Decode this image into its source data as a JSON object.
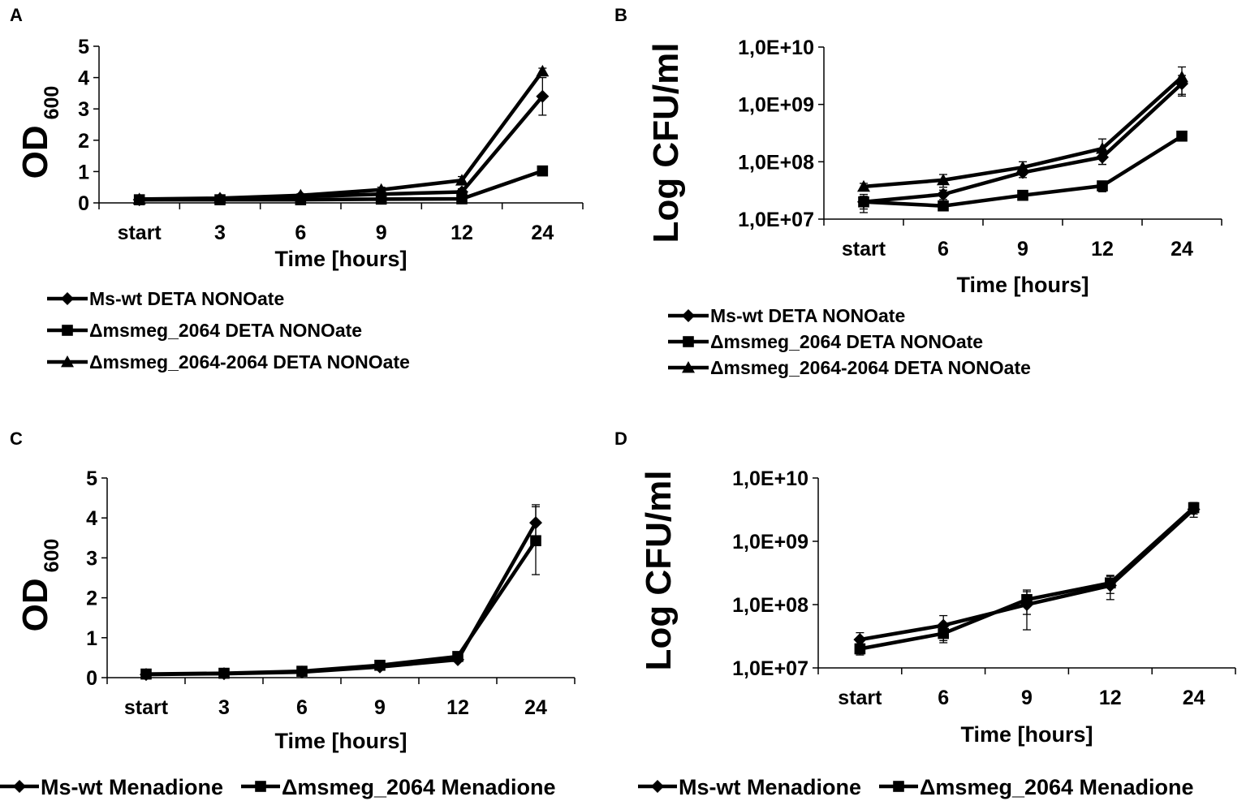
{
  "chart_data": [
    {
      "panel": "A",
      "type": "line",
      "categories": [
        "start",
        "3",
        "6",
        "9",
        "12",
        "24"
      ],
      "ylabel_main": "OD",
      "ylabel_sub": "600",
      "xlabel": "Time [hours]",
      "ylim": [
        0,
        5
      ],
      "yticks": [
        "0",
        "1",
        "2",
        "3",
        "4",
        "5"
      ],
      "scale": "linear",
      "series": [
        {
          "name": "Ms-wt DETA NONOate",
          "marker": "diamond",
          "values": [
            0.1,
            0.13,
            0.2,
            0.28,
            0.35,
            3.4
          ],
          "errors": [
            0.03,
            0.03,
            0.03,
            0.05,
            0.1,
            0.6
          ]
        },
        {
          "name": "Δmsmeg_2064 DETA NONOate",
          "marker": "square",
          "values": [
            0.1,
            0.1,
            0.1,
            0.12,
            0.13,
            1.02
          ],
          "errors": [
            0.02,
            0.02,
            0.02,
            0.02,
            0.03,
            0.05
          ]
        },
        {
          "name": "Δmsmeg_2064-2064 DETA NONOate",
          "marker": "triangle",
          "values": [
            0.12,
            0.15,
            0.24,
            0.42,
            0.72,
            4.2
          ],
          "errors": [
            0.03,
            0.03,
            0.05,
            0.08,
            0.12,
            0.1
          ]
        }
      ]
    },
    {
      "panel": "B",
      "type": "line",
      "categories": [
        "start",
        "6",
        "9",
        "12",
        "24"
      ],
      "ylabel_main": "Log CFU/ml",
      "xlabel": "Time [hours]",
      "ylim": [
        10000000,
        10000000000
      ],
      "yticks": [
        "1,0E+07",
        "1,0E+08",
        "1,0E+09",
        "1,0E+10"
      ],
      "scale": "log",
      "series": [
        {
          "name": "Ms-wt DETA NONOate",
          "marker": "diamond",
          "values": [
            20000000,
            27000000,
            65000000,
            120000000,
            2300000000
          ],
          "errors": [
            5000000,
            5000000,
            12000000,
            30000000,
            900000000
          ]
        },
        {
          "name": "Δmsmeg_2064 DETA NONOate",
          "marker": "square",
          "values": [
            20000000,
            17000000,
            26000000,
            38000000,
            280000000
          ],
          "errors": [
            7000000,
            3000000,
            4000000,
            8000000,
            30000000
          ]
        },
        {
          "name": "Δmsmeg_2064-2064 DETA NONOate",
          "marker": "triangle",
          "values": [
            37000000,
            48000000,
            80000000,
            170000000,
            3000000000
          ],
          "errors": [
            5000000,
            12000000,
            20000000,
            80000000,
            1500000000
          ]
        }
      ]
    },
    {
      "panel": "C",
      "type": "line",
      "categories": [
        "start",
        "3",
        "6",
        "9",
        "12",
        "24"
      ],
      "ylabel_main": "OD",
      "ylabel_sub": "600",
      "xlabel": "Time [hours]",
      "ylim": [
        0,
        5
      ],
      "yticks": [
        "0",
        "1",
        "2",
        "3",
        "4",
        "5"
      ],
      "scale": "linear",
      "series": [
        {
          "name": "Ms-wt Menadione",
          "marker": "diamond",
          "values": [
            0.08,
            0.1,
            0.14,
            0.27,
            0.45,
            3.88
          ],
          "errors": [
            0.02,
            0.02,
            0.03,
            0.04,
            0.05,
            0.45
          ]
        },
        {
          "name": "Δmsmeg_2064 Menadione",
          "marker": "square",
          "values": [
            0.09,
            0.11,
            0.16,
            0.31,
            0.53,
            3.43
          ],
          "errors": [
            0.02,
            0.02,
            0.03,
            0.04,
            0.05,
            0.85
          ]
        }
      ]
    },
    {
      "panel": "D",
      "type": "line",
      "categories": [
        "start",
        "6",
        "9",
        "12",
        "24"
      ],
      "ylabel_main": "Log CFU/ml",
      "xlabel": "Time [hours]",
      "ylim": [
        10000000,
        10000000000
      ],
      "yticks": [
        "1,0E+07",
        "1,0E+08",
        "1,0E+09",
        "1,0E+10"
      ],
      "scale": "log",
      "series": [
        {
          "name": "Ms-wt Menadione",
          "marker": "diamond",
          "values": [
            28000000,
            47000000,
            100000000,
            200000000,
            3200000000
          ],
          "errors": [
            8000000,
            20000000,
            60000000,
            80000000,
            800000000
          ]
        },
        {
          "name": "Δmsmeg_2064 Menadione",
          "marker": "square",
          "values": [
            20000000,
            35000000,
            120000000,
            220000000,
            3400000000
          ],
          "errors": [
            4000000,
            10000000,
            50000000,
            70000000,
            700000000
          ]
        }
      ]
    }
  ]
}
